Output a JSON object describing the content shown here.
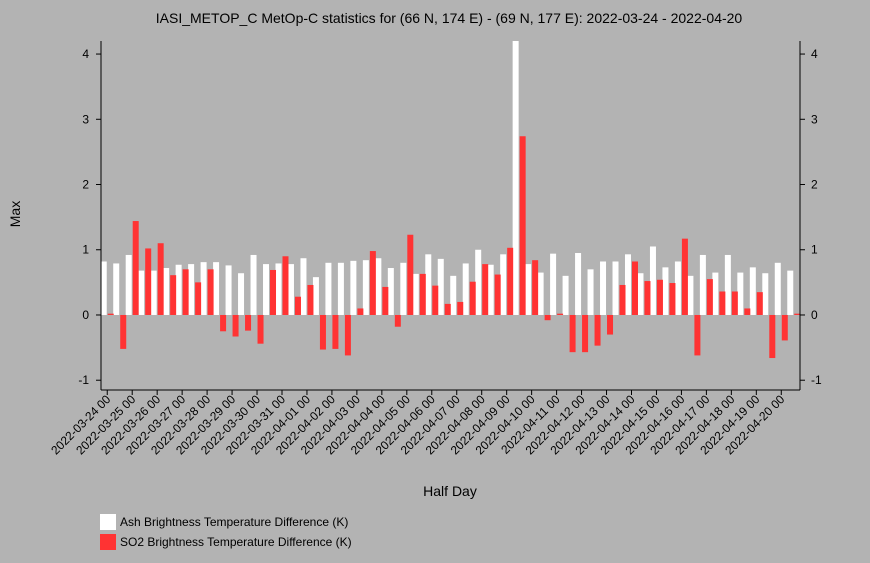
{
  "chart_data": {
    "type": "bar",
    "title": "IASI_METOP_C MetOp-C statistics for (66 N, 174 E) - (69 N, 177 E): 2022-03-24 - 2022-04-20",
    "xlabel": "Half Day",
    "ylabel": "Max",
    "ylim": [
      -1.15,
      4.2
    ],
    "yticks": [
      -1,
      0,
      1,
      2,
      3,
      4
    ],
    "grid": false,
    "legend_position": "bottom-left",
    "categories": [
      "2022-03-24 00",
      "2022-03-24 12",
      "2022-03-25 00",
      "2022-03-25 12",
      "2022-03-26 00",
      "2022-03-26 12",
      "2022-03-27 00",
      "2022-03-27 12",
      "2022-03-28 00",
      "2022-03-28 12",
      "2022-03-29 00",
      "2022-03-29 12",
      "2022-03-30 00",
      "2022-03-30 12",
      "2022-03-31 00",
      "2022-03-31 12",
      "2022-04-01 00",
      "2022-04-01 12",
      "2022-04-02 00",
      "2022-04-02 12",
      "2022-04-03 00",
      "2022-04-03 12",
      "2022-04-04 00",
      "2022-04-04 12",
      "2022-04-05 00",
      "2022-04-05 12",
      "2022-04-06 00",
      "2022-04-06 12",
      "2022-04-07 00",
      "2022-04-07 12",
      "2022-04-08 00",
      "2022-04-08 12",
      "2022-04-09 00",
      "2022-04-09 12",
      "2022-04-10 00",
      "2022-04-10 12",
      "2022-04-11 00",
      "2022-04-11 12",
      "2022-04-12 00",
      "2022-04-12 12",
      "2022-04-13 00",
      "2022-04-13 12",
      "2022-04-14 00",
      "2022-04-14 12",
      "2022-04-15 00",
      "2022-04-15 12",
      "2022-04-16 00",
      "2022-04-16 12",
      "2022-04-17 00",
      "2022-04-17 12",
      "2022-04-18 00",
      "2022-04-18 12",
      "2022-04-19 00",
      "2022-04-19 12",
      "2022-04-20 00",
      "2022-04-20 12"
    ],
    "tick_labels": [
      "2022-03-24 00",
      "2022-03-25 00",
      "2022-03-26 00",
      "2022-03-27 00",
      "2022-03-28 00",
      "2022-03-29 00",
      "2022-03-30 00",
      "2022-03-31 00",
      "2022-04-01 00",
      "2022-04-02 00",
      "2022-04-03 00",
      "2022-04-04 00",
      "2022-04-05 00",
      "2022-04-06 00",
      "2022-04-07 00",
      "2022-04-08 00",
      "2022-04-09 00",
      "2022-04-10 00",
      "2022-04-11 00",
      "2022-04-12 00",
      "2022-04-13 00",
      "2022-04-14 00",
      "2022-04-15 00",
      "2022-04-16 00",
      "2022-04-17 00",
      "2022-04-18 00",
      "2022-04-19 00",
      "2022-04-20 00"
    ],
    "series": [
      {
        "name": "Ash Brightness Temperature Difference (K)",
        "color": "#ffffff",
        "values": [
          0.82,
          0.79,
          0.92,
          0.68,
          0.68,
          0.72,
          0.77,
          0.78,
          0.81,
          0.81,
          0.76,
          0.64,
          0.92,
          0.78,
          0.79,
          0.78,
          0.87,
          0.58,
          0.8,
          0.8,
          0.83,
          0.84,
          0.87,
          0.72,
          0.8,
          0.63,
          0.93,
          0.86,
          0.6,
          0.79,
          1.0,
          0.77,
          0.93,
          4.2,
          0.78,
          0.65,
          0.94,
          0.6,
          0.95,
          0.7,
          0.82,
          0.82,
          0.93,
          0.64,
          1.05,
          0.73,
          0.82,
          0.6,
          0.92,
          0.65,
          0.92,
          0.65,
          0.73,
          0.64,
          0.8,
          0.68
        ]
      },
      {
        "name": "SO2 Brightness Temperature Difference (K)",
        "color": "#ff3333",
        "values": [
          0.02,
          -0.52,
          1.44,
          1.02,
          1.1,
          0.61,
          0.7,
          0.5,
          0.7,
          -0.25,
          -0.33,
          -0.24,
          -0.44,
          0.69,
          0.9,
          0.28,
          0.46,
          -0.53,
          -0.52,
          -0.62,
          0.1,
          0.98,
          0.43,
          -0.18,
          1.23,
          0.63,
          0.45,
          0.17,
          0.2,
          0.51,
          0.78,
          0.62,
          1.03,
          2.74,
          0.84,
          -0.08,
          0.02,
          -0.57,
          -0.57,
          -0.47,
          -0.3,
          0.46,
          0.82,
          0.52,
          0.54,
          0.49,
          1.17,
          -0.62,
          0.55,
          0.36,
          0.36,
          0.1,
          0.35,
          -0.66,
          -0.39,
          0.02
        ]
      }
    ]
  }
}
